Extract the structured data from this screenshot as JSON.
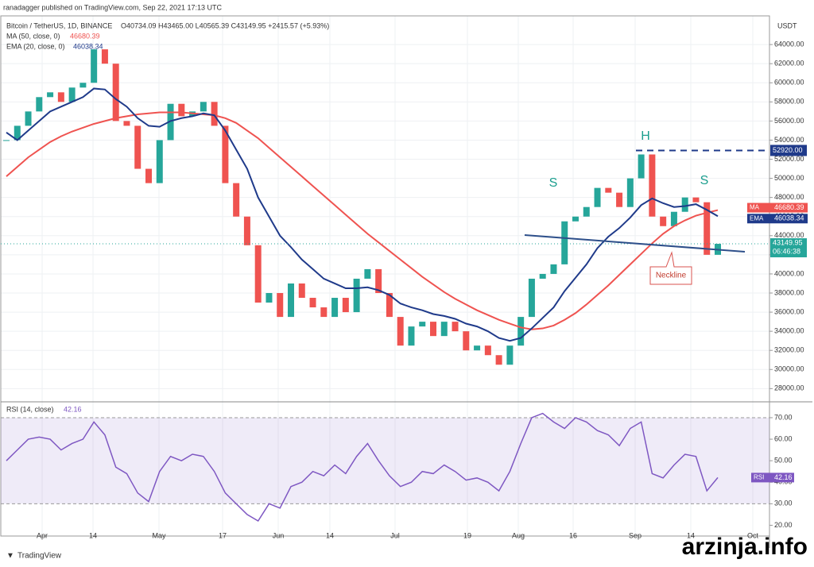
{
  "header": {
    "publisher": "ranadagger published on TradingView.com, Sep 22, 2021 17:13 UTC",
    "symbol": "Bitcoin / TetherUS, 1D, BINANCE",
    "ohlc": "O40734.09 H43465.00 L40565.39 C43149.95 +2415.57 (+5.93%)",
    "ma_label": "MA (50, close, 0)",
    "ema_label": "EMA (20, close, 0)"
  },
  "chart_data": [
    {
      "type": "candlestick",
      "unit": "USDT",
      "x_labels": [
        "Apr",
        "14",
        "May",
        "17",
        "Jun",
        "14",
        "Jul",
        "19",
        "Aug",
        "16",
        "Sep",
        "14",
        "Oct"
      ],
      "values": [
        54000,
        55500,
        57000,
        58500,
        59000,
        58000,
        59500,
        60000,
        63500,
        62000,
        56000,
        55500,
        51000,
        49500,
        54000,
        57800,
        56500,
        57000,
        58000,
        55500,
        49500,
        46000,
        43000,
        37000,
        38000,
        35500,
        39000,
        37500,
        36500,
        35500,
        37500,
        36000,
        39500,
        40500,
        38000,
        35500,
        32500,
        34500,
        35000,
        33500,
        35000,
        34000,
        32000,
        32500,
        31500,
        30500,
        32500,
        35500,
        39500,
        40000,
        41000,
        45500,
        46000,
        47000,
        49000,
        48500,
        47000,
        50000,
        52500,
        46000,
        45000,
        46500,
        48000,
        47500,
        42000,
        43149.95
      ],
      "up_color": "#26a69a",
      "down_color": "#ef5350",
      "countdown": "06:46:38",
      "series": [
        {
          "name": "MA",
          "color": "#ef5350",
          "values": [
            50200,
            51200,
            52200,
            53000,
            53800,
            54400,
            54900,
            55300,
            55700,
            56000,
            56300,
            56500,
            56700,
            56800,
            56900,
            56900,
            56900,
            56800,
            56700,
            56600,
            56300,
            55800,
            55000,
            54200,
            53200,
            52200,
            51200,
            50200,
            49200,
            48200,
            47200,
            46200,
            45200,
            44200,
            43300,
            42400,
            41500,
            40600,
            39700,
            38900,
            38100,
            37400,
            36800,
            36200,
            35700,
            35200,
            34800,
            34400,
            34200,
            34300,
            34600,
            35200,
            35900,
            36800,
            37800,
            38800,
            39900,
            41000,
            42100,
            43200,
            44200,
            45000,
            45600,
            46100,
            46400,
            46680.39
          ]
        },
        {
          "name": "EMA",
          "color": "#1f3a8a",
          "values": [
            54800,
            54000,
            55000,
            56000,
            57000,
            57500,
            58000,
            58500,
            59400,
            59300,
            58300,
            57500,
            56300,
            55500,
            55400,
            56000,
            56300,
            56500,
            56800,
            56600,
            55000,
            53000,
            51000,
            48000,
            46000,
            44000,
            42800,
            41500,
            40500,
            39500,
            39000,
            38500,
            38500,
            38600,
            38300,
            37800,
            36900,
            36500,
            36200,
            35800,
            35600,
            35300,
            34800,
            34500,
            34000,
            33300,
            33000,
            33300,
            34300,
            35400,
            36500,
            38200,
            39600,
            41000,
            42700,
            43900,
            44800,
            45900,
            47200,
            47900,
            47400,
            47000,
            47100,
            47300,
            46700,
            46038.34
          ]
        }
      ],
      "resistance": {
        "value": 52920,
        "label": "52920.00"
      },
      "ylim": [
        26700,
        67000
      ],
      "yticks": [
        {
          "value": 28000,
          "label": "28000.00"
        },
        {
          "value": 30000,
          "label": "30000.00"
        },
        {
          "value": 32000,
          "label": "32000.00"
        },
        {
          "value": 34000,
          "label": "34000.00"
        },
        {
          "value": 36000,
          "label": "36000.00"
        },
        {
          "value": 38000,
          "label": "38000.00"
        },
        {
          "value": 40000,
          "label": "40000.00"
        },
        {
          "value": 42000,
          "label": "42000.00"
        },
        {
          "value": 44000,
          "label": "44000.00"
        },
        {
          "value": 46000,
          "label": "46000.00"
        },
        {
          "value": 48000,
          "label": "48000.00"
        },
        {
          "value": 50000,
          "label": "50000.00"
        },
        {
          "value": 52000,
          "label": "52000.00"
        },
        {
          "value": 54000,
          "label": "54000.00"
        },
        {
          "value": 56000,
          "label": "56000.00"
        },
        {
          "value": 58000,
          "label": "58000.00"
        },
        {
          "value": 60000,
          "label": "60000.00"
        },
        {
          "value": 62000,
          "label": "62000.00"
        },
        {
          "value": 64000,
          "label": "64000.00"
        }
      ],
      "annotations": [
        "S",
        "H",
        "S",
        "Neckline"
      ]
    },
    {
      "type": "line",
      "title": "RSI (14, close)",
      "series": [
        {
          "name": "RSI",
          "color": "#7e57c2",
          "values": [
            50,
            55,
            60,
            61,
            60,
            55,
            58,
            60,
            68,
            62,
            47,
            44,
            35,
            31,
            45,
            52,
            50,
            53,
            52,
            45,
            35,
            30,
            25,
            22,
            30,
            28,
            38,
            40,
            45,
            43,
            48,
            44,
            52,
            58,
            50,
            43,
            38,
            40,
            45,
            44,
            48,
            45,
            41,
            42,
            40,
            36,
            45,
            58,
            70,
            72,
            68,
            65,
            70,
            68,
            64,
            62,
            57,
            65,
            68,
            44,
            42,
            48,
            53,
            52,
            36,
            42.16
          ]
        }
      ],
      "band": [
        30,
        70
      ],
      "ylim": [
        15,
        77
      ],
      "yticks": [
        {
          "value": 20,
          "label": "20.00"
        },
        {
          "value": 30,
          "label": "30.00"
        },
        {
          "value": 40,
          "label": "40.00"
        },
        {
          "value": 50,
          "label": "50.00"
        },
        {
          "value": 60,
          "label": "60.00"
        },
        {
          "value": 70,
          "label": "70.00"
        }
      ]
    }
  ],
  "footer": "TradingView",
  "watermark": "arzinja.info"
}
